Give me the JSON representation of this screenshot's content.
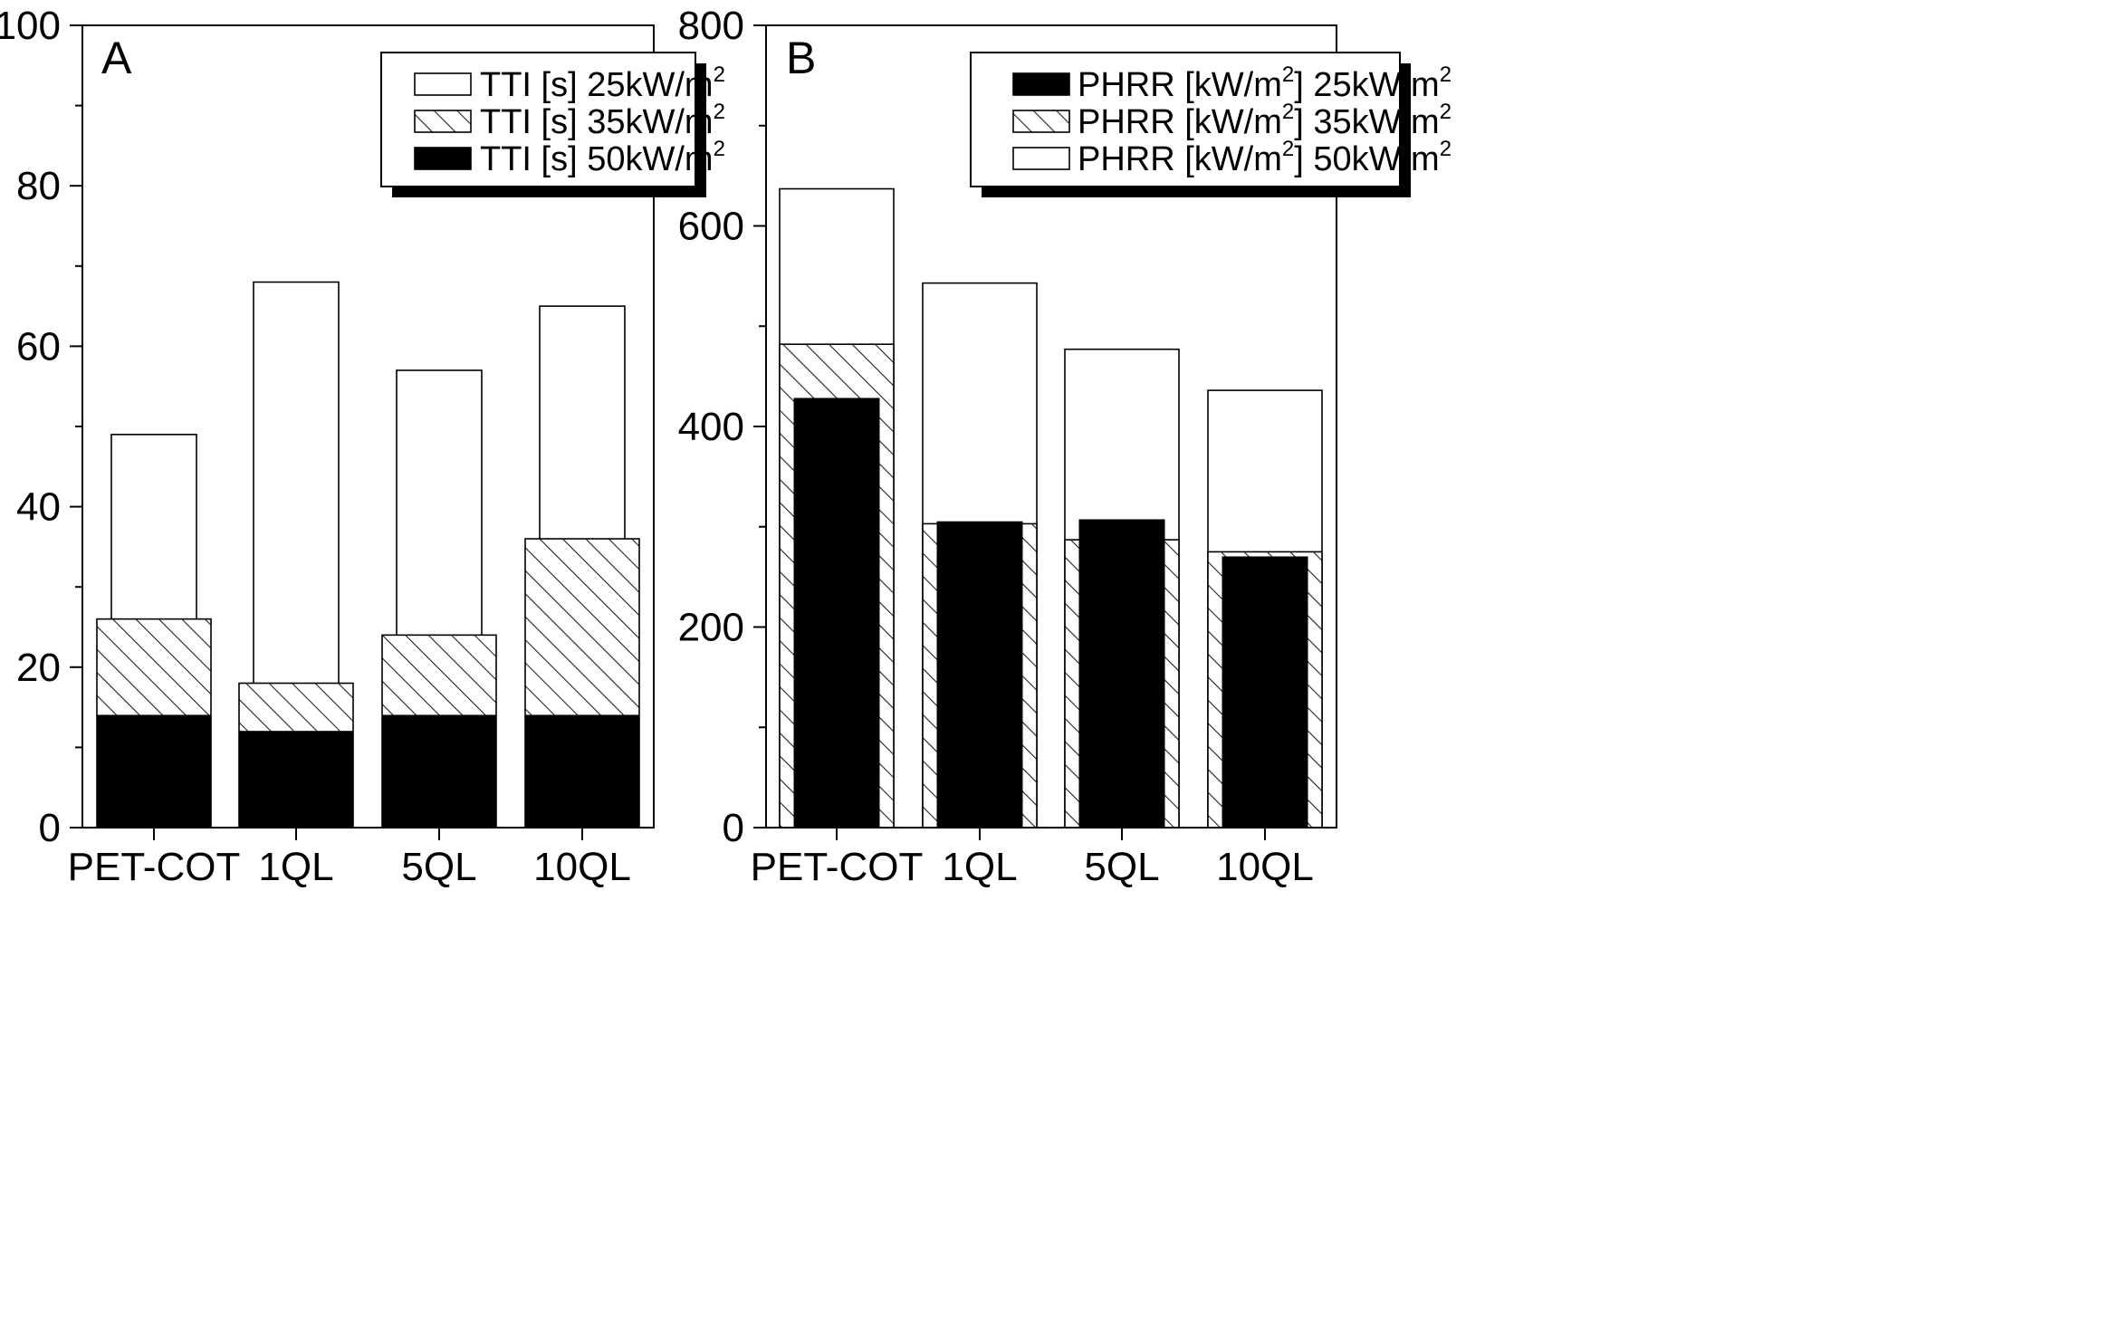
{
  "chart_data": [
    {
      "type": "bar",
      "panel_label": "A",
      "categories": [
        "PET-COT",
        "1QL",
        "5QL",
        "10QL"
      ],
      "ylim": [
        0,
        100
      ],
      "yticks": [
        "0",
        "20",
        "40",
        "60",
        "80",
        "100"
      ],
      "series": [
        {
          "name": "TTI [s] 25kW/m",
          "sup": "2",
          "style": "white",
          "values": [
            49,
            68,
            57,
            65
          ]
        },
        {
          "name": "TTI [s] 35kW/m",
          "sup": "2",
          "style": "hatch",
          "values": [
            26,
            18,
            24,
            36
          ]
        },
        {
          "name": "TTI [s] 50kW/m",
          "sup": "2",
          "style": "black",
          "values": [
            14,
            12,
            14,
            14
          ]
        }
      ],
      "legend_position": "top-right"
    },
    {
      "type": "bar",
      "panel_label": "B",
      "categories": [
        "PET-COT",
        "1QL",
        "5QL",
        "10QL"
      ],
      "ylim": [
        0,
        800
      ],
      "yticks": [
        "0",
        "200",
        "400",
        "600",
        "800"
      ],
      "series": [
        {
          "name_parts": [
            "PHRR [kW/m",
            "2",
            "] 25kW/m",
            "2"
          ],
          "style": "black",
          "values": [
            428,
            305,
            307,
            270
          ]
        },
        {
          "name_parts": [
            "PHRR [kW/m",
            "2",
            "] 35kW/m",
            "2"
          ],
          "style": "hatch",
          "values": [
            482,
            303,
            287,
            275
          ]
        },
        {
          "name_parts": [
            "PHRR [kW/m",
            "2",
            "] 50kW/m",
            "2"
          ],
          "style": "white",
          "values": [
            637,
            543,
            477,
            436
          ]
        }
      ],
      "legend_position": "top-right"
    }
  ]
}
